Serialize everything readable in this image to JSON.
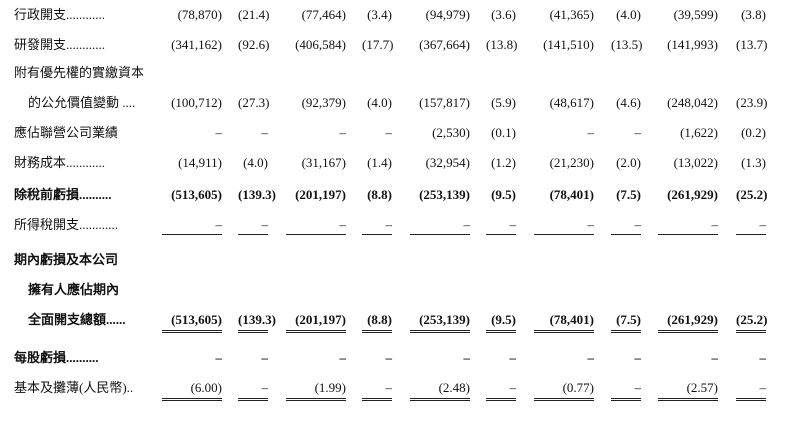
{
  "table": {
    "rows": [
      {
        "label": "行政開支............",
        "cells": [
          "(78,870)",
          "(21.4)",
          "(77,464)",
          "(3.4)",
          "(94,979)",
          "(3.6)",
          "(41,365)",
          "(4.0)",
          "(39,599)",
          "(3.8)"
        ]
      },
      {
        "label": "研發開支............",
        "cells": [
          "(341,162)",
          "(92.6)",
          "(406,584)",
          "(17.7)",
          "(367,664)",
          "(13.8)",
          "(141,510)",
          "(13.5)",
          "(141,993)",
          "(13.7)"
        ]
      },
      {
        "label": "附有優先權的實繳資本"
      },
      {
        "label": "的公允價值變動 ....",
        "cells": [
          "(100,712)",
          "(27.3)",
          "(92,379)",
          "(4.0)",
          "(157,817)",
          "(5.9)",
          "(48,617)",
          "(4.6)",
          "(248,042)",
          "(23.9)"
        ]
      },
      {
        "label": "應佔聯營公司業績",
        "cells": [
          "–",
          "–",
          "–",
          "–",
          "(2,530)",
          "(0.1)",
          "–",
          "–",
          "(1,622)",
          "(0.2)"
        ]
      },
      {
        "label": "財務成本............",
        "cells": [
          "(14,911)",
          "(4.0)",
          "(31,167)",
          "(1.4)",
          "(32,954)",
          "(1.2)",
          "(21,230)",
          "(2.0)",
          "(13,022)",
          "(1.3)"
        ]
      },
      {
        "label": "除稅前虧損..........",
        "cells": [
          "(513,605)",
          "(139.3)",
          "(201,197)",
          "(8.8)",
          "(253,139)",
          "(9.5)",
          "(78,401)",
          "(7.5)",
          "(261,929)",
          "(25.2)"
        ]
      },
      {
        "label": "所得稅開支............",
        "cells": [
          "–",
          "–",
          "–",
          "–",
          "–",
          "–",
          "–",
          "–",
          "–",
          "–"
        ]
      },
      {
        "label": "期內虧損及本公司"
      },
      {
        "label": "擁有人應佔期內"
      },
      {
        "label": "全面開支總額......",
        "cells": [
          "(513,605)",
          "(139.3)",
          "(201,197)",
          "(8.8)",
          "(253,139)",
          "(9.5)",
          "(78,401)",
          "(7.5)",
          "(261,929)",
          "(25.2)"
        ]
      },
      {
        "label": "每股虧損..........",
        "cells": [
          "–",
          "–",
          "–",
          "–",
          "–",
          "–",
          "–",
          "–",
          "–",
          "–"
        ]
      },
      {
        "label": "基本及攤薄(人民幣)..",
        "cells": [
          "(6.00)",
          "–",
          "(1.99)",
          "–",
          "(2.48)",
          "–",
          "(0.77)",
          "–",
          "(2.57)",
          "–"
        ]
      }
    ]
  }
}
